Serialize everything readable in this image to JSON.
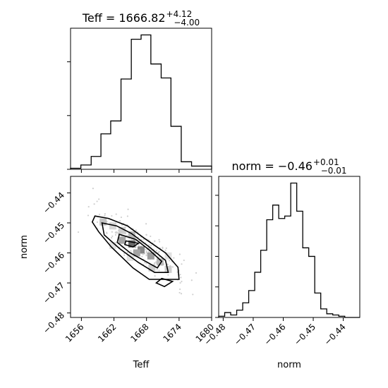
{
  "titles": {
    "teff": {
      "main": "Teff = 1666.82",
      "sup": "+4.12",
      "sub": "−4.00"
    },
    "norm": {
      "main": "norm = −0.46",
      "sup": "+0.01",
      "sub": "−0.01"
    }
  },
  "chart_data": [
    {
      "panel": "teff-histogram",
      "type": "bar",
      "style": "step",
      "xlim": [
        1654,
        1680
      ],
      "x_ticks": [
        1656,
        1662,
        1668,
        1674,
        1680
      ],
      "bins": [
        1654,
        1655.9,
        1657.8,
        1659.6,
        1661.4,
        1663.3,
        1665.2,
        1667,
        1668.8,
        1670.7,
        1672.5,
        1674.4,
        1676.3,
        1680
      ],
      "counts": [
        1,
        4,
        12,
        33,
        45,
        84,
        121,
        125,
        98,
        85,
        40,
        7,
        3
      ],
      "y_tick_labels": "hidden"
    },
    {
      "panel": "teff-norm-2d",
      "type": "heatmap",
      "xlabel": "Teff",
      "ylabel": "norm",
      "xlim": [
        1654,
        1680
      ],
      "ylim": [
        -0.4815,
        -0.4345
      ],
      "x_ticks": [
        1656,
        1662,
        1668,
        1674,
        1680
      ],
      "y_ticks": [
        -0.44,
        -0.45,
        -0.46,
        -0.47,
        -0.48
      ],
      "y_tick_labels": [
        "−0.44",
        "−0.45",
        "−0.46",
        "−0.47",
        "−0.48"
      ],
      "density_cells": [
        {
          "teff": 1660.0,
          "norm": -0.4497,
          "density": 0.3
        },
        {
          "teff": 1661.8,
          "norm": -0.451,
          "density": 0.2
        },
        {
          "teff": 1663.5,
          "norm": -0.4525,
          "density": 0.25
        },
        {
          "teff": 1665.3,
          "norm": -0.454,
          "density": 0.35
        },
        {
          "teff": 1663.5,
          "norm": -0.4558,
          "density": 0.45
        },
        {
          "teff": 1665.3,
          "norm": -0.457,
          "density": 0.75
        },
        {
          "teff": 1667.0,
          "norm": -0.459,
          "density": 0.6
        },
        {
          "teff": 1668.8,
          "norm": -0.461,
          "density": 0.5
        },
        {
          "teff": 1666.2,
          "norm": -0.46,
          "density": 0.45
        },
        {
          "teff": 1670.5,
          "norm": -0.463,
          "density": 0.35
        },
        {
          "teff": 1669.0,
          "norm": -0.465,
          "density": 0.25
        },
        {
          "teff": 1672.0,
          "norm": -0.4655,
          "density": 0.25
        },
        {
          "teff": 1672.0,
          "norm": -0.461,
          "density": 0.15
        },
        {
          "teff": 1665.0,
          "norm": -0.4615,
          "density": 0.15
        },
        {
          "teff": 1661.8,
          "norm": -0.4575,
          "density": 0.15
        }
      ],
      "contours": [
        [
          [
            1658.5,
            -0.4477
          ],
          [
            1661.0,
            -0.4485
          ],
          [
            1664.5,
            -0.451
          ],
          [
            1667.5,
            -0.455
          ],
          [
            1671.5,
            -0.46
          ],
          [
            1673.8,
            -0.4648
          ],
          [
            1674.0,
            -0.4688
          ],
          [
            1671.5,
            -0.4688
          ],
          [
            1668.5,
            -0.4688
          ],
          [
            1665.5,
            -0.465
          ],
          [
            1661.5,
            -0.458
          ],
          [
            1659.2,
            -0.453
          ],
          [
            1658.0,
            -0.4497
          ]
        ],
        [
          [
            1659.8,
            -0.45
          ],
          [
            1662.5,
            -0.451
          ],
          [
            1665.2,
            -0.4535
          ],
          [
            1668.5,
            -0.458
          ],
          [
            1671.5,
            -0.4625
          ],
          [
            1672.0,
            -0.4665
          ],
          [
            1669.5,
            -0.4665
          ],
          [
            1666.5,
            -0.4632
          ],
          [
            1663.0,
            -0.4585
          ],
          [
            1660.2,
            -0.454
          ]
        ],
        [
          [
            1663.0,
            -0.4538
          ],
          [
            1666.0,
            -0.4555
          ],
          [
            1668.5,
            -0.459
          ],
          [
            1670.8,
            -0.4628
          ],
          [
            1670.0,
            -0.465
          ],
          [
            1667.5,
            -0.4625
          ],
          [
            1665.0,
            -0.46
          ],
          [
            1662.6,
            -0.4565
          ]
        ],
        [
          [
            1664.2,
            -0.456
          ],
          [
            1666.5,
            -0.4568
          ],
          [
            1665.5,
            -0.458
          ],
          [
            1664.0,
            -0.4572
          ]
        ],
        [
          [
            1670.8,
            -0.4685
          ],
          [
            1672.8,
            -0.4695
          ],
          [
            1671.3,
            -0.4712
          ],
          [
            1669.8,
            -0.47
          ]
        ]
      ]
    },
    {
      "panel": "norm-histogram",
      "type": "bar",
      "style": "step",
      "xlim": [
        -0.4815,
        -0.4345
      ],
      "x_ticks": [
        -0.48,
        -0.47,
        -0.46,
        -0.45,
        -0.44
      ],
      "x_tick_labels": [
        "−0.48",
        "−0.47",
        "−0.46",
        "−0.45",
        "−0.44"
      ],
      "bins": [
        -0.4815,
        -0.4795,
        -0.4775,
        -0.4755,
        -0.4735,
        -0.4715,
        -0.4695,
        -0.4675,
        -0.4655,
        -0.4635,
        -0.4615,
        -0.4595,
        -0.4575,
        -0.4555,
        -0.4535,
        -0.4515,
        -0.4495,
        -0.4475,
        -0.4455,
        -0.4435,
        -0.4415,
        -0.4395,
        -0.4375,
        -0.4345
      ],
      "counts": [
        1,
        4,
        2,
        6,
        12,
        22,
        37,
        55,
        80,
        92,
        81,
        83,
        110,
        87,
        57,
        50,
        20,
        7,
        3,
        2,
        1,
        0,
        0
      ],
      "y_tick_labels": "hidden"
    },
    {
      "panel": "x-axis-labels",
      "type": "table",
      "left_xlabel": "Teff",
      "right_xlabel": "norm"
    }
  ]
}
